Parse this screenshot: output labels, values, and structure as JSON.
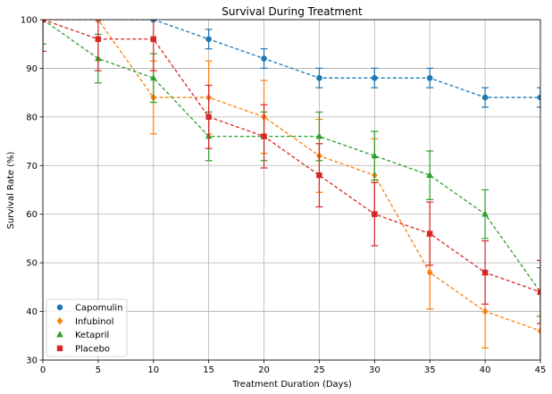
{
  "chart_data": {
    "type": "line",
    "title": "Survival During Treatment",
    "xlabel": "Treatment Duration (Days)",
    "ylabel": "Survival Rate (%)",
    "xlim": [
      0,
      45
    ],
    "ylim": [
      30,
      100
    ],
    "x_ticks": [
      0,
      5,
      10,
      15,
      20,
      25,
      30,
      35,
      40,
      45
    ],
    "y_ticks": [
      30,
      40,
      50,
      60,
      70,
      80,
      90,
      100
    ],
    "grid": true,
    "legend_position": "lower-left",
    "x": [
      0,
      5,
      10,
      15,
      20,
      25,
      30,
      35,
      40,
      45
    ],
    "series": [
      {
        "name": "Capomulin",
        "color": "#1f77b4",
        "marker": "circle",
        "values": [
          100,
          100,
          100,
          96,
          92,
          88,
          88,
          88,
          84,
          84
        ],
        "errors": [
          0,
          0,
          0,
          2.0,
          2.0,
          2.0,
          2.0,
          2.0,
          2.0,
          2.0
        ]
      },
      {
        "name": "Infubinol",
        "color": "#ff7f0e",
        "marker": "diamond",
        "values": [
          100,
          100,
          84,
          84,
          80,
          72,
          68,
          48,
          40,
          36
        ],
        "errors": [
          0,
          0,
          7.5,
          7.5,
          7.5,
          7.5,
          7.5,
          7.5,
          7.5,
          7.5
        ]
      },
      {
        "name": "Ketapril",
        "color": "#2ca02c",
        "marker": "triangle",
        "values": [
          100,
          92,
          88,
          76,
          76,
          76,
          72,
          68,
          60,
          44
        ],
        "errors": [
          5,
          5,
          5,
          5,
          5,
          5,
          5,
          5,
          5,
          5
        ]
      },
      {
        "name": "Placebo",
        "color": "#d62728",
        "marker": "square",
        "values": [
          100,
          96,
          96,
          80,
          76,
          68,
          60,
          56,
          48,
          44
        ],
        "errors": [
          6.5,
          6.5,
          6.5,
          6.5,
          6.5,
          6.5,
          6.5,
          6.5,
          6.5,
          6.5
        ]
      }
    ]
  }
}
